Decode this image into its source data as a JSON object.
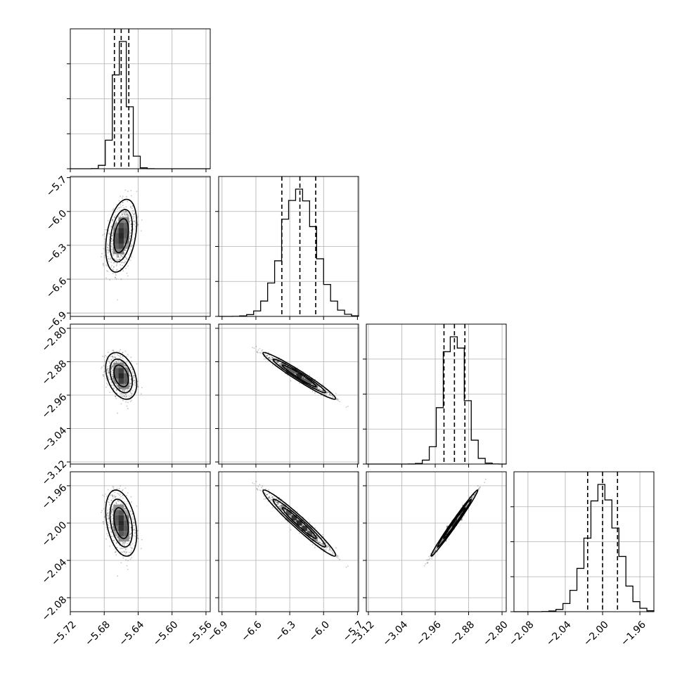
{
  "chart_data": {
    "type": "corner",
    "parameters": [
      {
        "range": [
          -5.72,
          -5.555
        ],
        "ticks": [
          -5.72,
          -5.68,
          -5.64,
          -5.6,
          -5.56
        ],
        "tick_labels": [
          "−5.72",
          "−5.68",
          "−5.64",
          "−5.60",
          "−5.56"
        ]
      },
      {
        "range": [
          -6.93,
          -5.69
        ],
        "ticks": [
          -6.9,
          -6.6,
          -6.3,
          -6.0,
          -5.7
        ],
        "tick_labels": [
          "−6.9",
          "−6.6",
          "−6.3",
          "−6.0",
          "−5.7"
        ]
      },
      {
        "range": [
          -3.125,
          -2.79
        ],
        "ticks": [
          -3.12,
          -3.04,
          -2.96,
          -2.88,
          -2.8
        ],
        "tick_labels": [
          "−3.12",
          "−3.04",
          "−2.96",
          "−2.88",
          "−2.80"
        ]
      },
      {
        "range": [
          -2.095,
          -1.945
        ],
        "ticks": [
          -2.08,
          -2.04,
          -2.0,
          -1.96
        ],
        "tick_labels": [
          "−2.08",
          "−2.04",
          "−2.00",
          "−1.96"
        ]
      }
    ],
    "marginals": [
      {
        "mean": -5.66,
        "sd": 0.0085,
        "quantiles": [
          -5.668,
          -5.66,
          -5.651
        ]
      },
      {
        "mean": -6.215,
        "sd": 0.15,
        "quantiles": [
          -6.37,
          -6.21,
          -6.07
        ]
      },
      {
        "mean": -2.914,
        "sd": 0.026,
        "quantiles": [
          -2.939,
          -2.914,
          -2.889
        ]
      },
      {
        "mean": -2.0,
        "sd": 0.0165,
        "quantiles": [
          -2.016,
          -2.0,
          -1.984
        ]
      }
    ],
    "correlations": {
      "1-0": 0.35,
      "2-0": -0.35,
      "2-1": -0.97,
      "3-0": -0.35,
      "3-1": -0.97,
      "3-2": 0.99
    },
    "grid": true,
    "xlabel": "",
    "ylabel": "",
    "title": ""
  }
}
